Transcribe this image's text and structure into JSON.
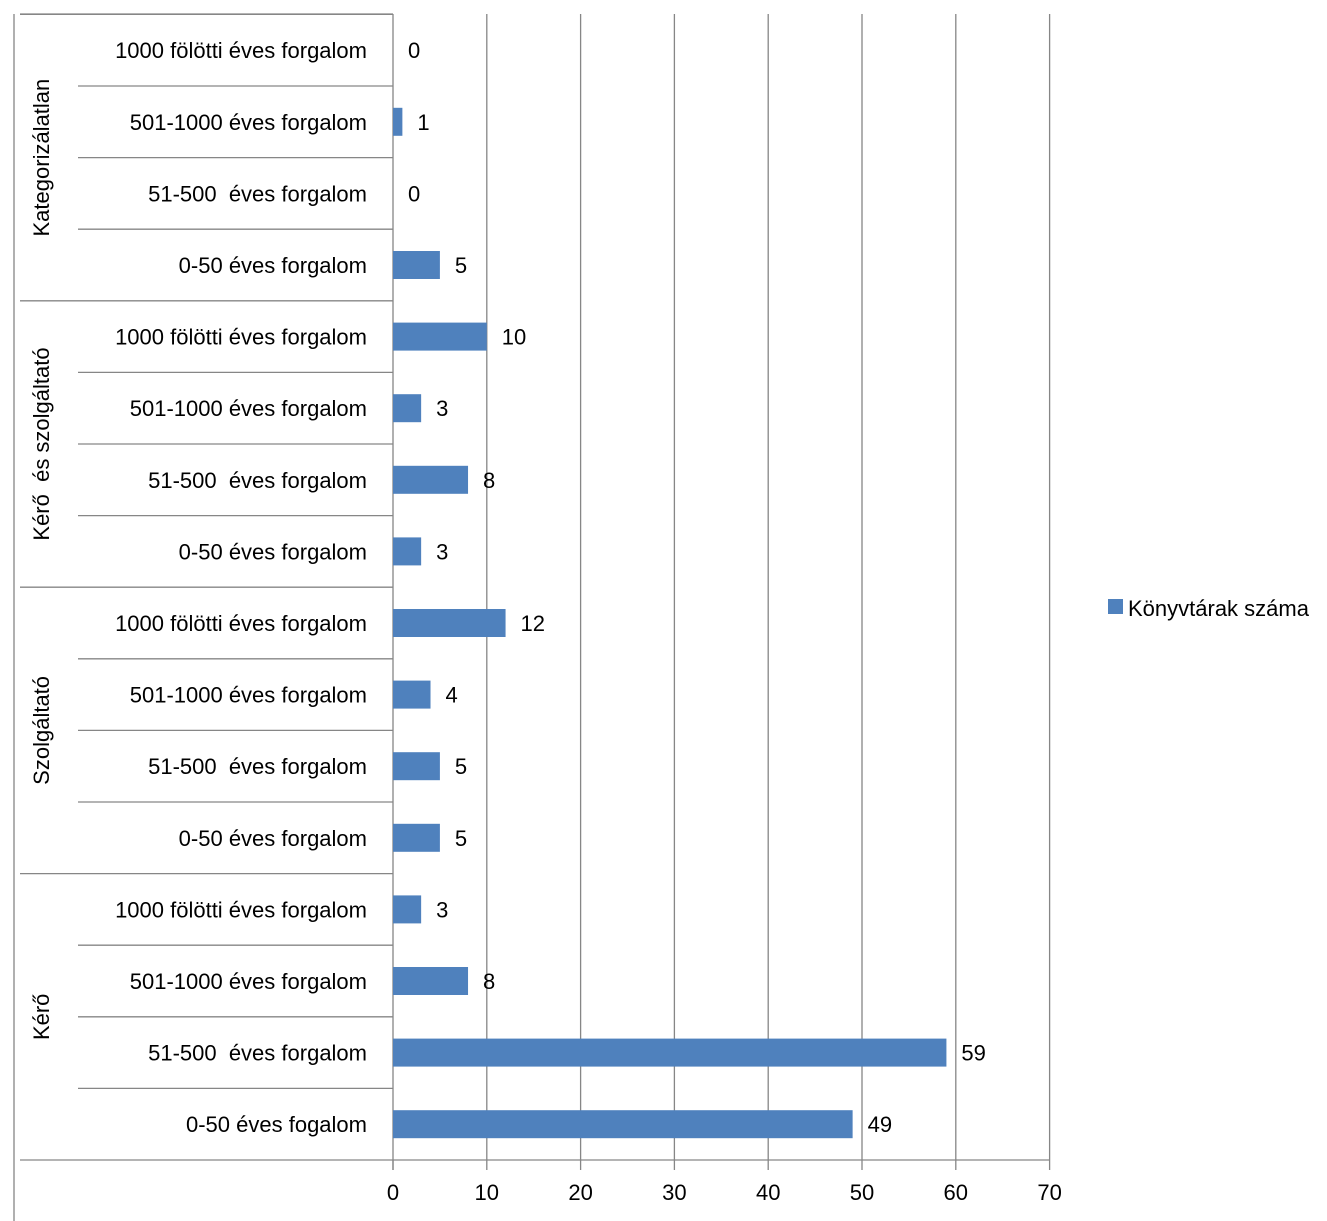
{
  "chart_data": {
    "type": "bar",
    "orientation": "horizontal",
    "groups": [
      {
        "name": "Kérő",
        "categories": [
          "0-50 éves fogalom",
          "51-500  éves forgalom",
          "501-1000 éves forgalom",
          "1000 fölötti éves forgalom"
        ],
        "values": [
          49,
          59,
          8,
          3
        ]
      },
      {
        "name": "Szolgáltató",
        "categories": [
          "0-50 éves forgalom",
          "51-500  éves forgalom",
          "501-1000 éves forgalom",
          "1000 fölötti éves forgalom"
        ],
        "values": [
          5,
          5,
          4,
          12
        ]
      },
      {
        "name": "Kérő  és szolgáltató",
        "categories": [
          "0-50 éves forgalom",
          "51-500  éves forgalom",
          "501-1000 éves forgalom",
          "1000 fölötti éves forgalom"
        ],
        "values": [
          3,
          8,
          3,
          10
        ]
      },
      {
        "name": "Kategorizálatlan",
        "categories": [
          "0-50 éves forgalom",
          "51-500  éves forgalom",
          "501-1000 éves forgalom",
          "1000 fölötti éves forgalom"
        ],
        "values": [
          5,
          0,
          1,
          0
        ]
      }
    ],
    "series": [
      {
        "name": "Könyvtárak száma"
      }
    ],
    "xlim": [
      0,
      70
    ],
    "xticks": [
      0,
      10,
      20,
      30,
      40,
      50,
      60,
      70
    ],
    "grid": "vertical",
    "legend": "right",
    "title": "",
    "xlabel": "",
    "ylabel": "",
    "colors": {
      "bar": "#4F81BD",
      "grid": "#868686",
      "axis": "#868686"
    }
  }
}
